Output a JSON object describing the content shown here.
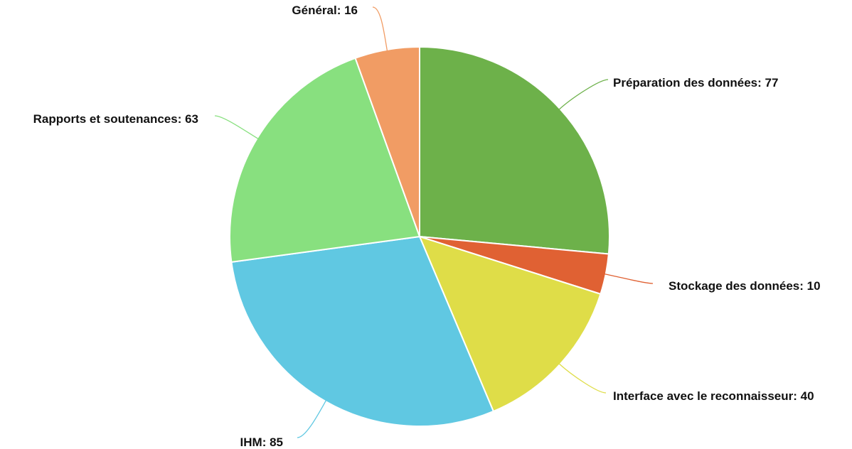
{
  "chart_data": {
    "type": "pie",
    "start_angle_deg": 0,
    "direction": "clockwise",
    "slices": [
      {
        "label": "Préparation des données",
        "value": 77,
        "color": "#6db14a",
        "display": "Préparation des données: 77"
      },
      {
        "label": "Stockage des données",
        "value": 10,
        "color": "#e06133",
        "display": "Stockage des données: 10"
      },
      {
        "label": "Interface avec le reconnaisseur",
        "value": 40,
        "color": "#dfdd48",
        "display": "Interface avec le reconnaisseur: 40"
      },
      {
        "label": "IHM",
        "value": 85,
        "color": "#60c8e2",
        "display": "IHM: 85"
      },
      {
        "label": "Rapports et soutenances",
        "value": 63,
        "color": "#88e07f",
        "display": "Rapports et soutenances: 63"
      },
      {
        "label": "Général",
        "value": 16,
        "color": "#f19c64",
        "display": "Général: 16"
      }
    ]
  }
}
